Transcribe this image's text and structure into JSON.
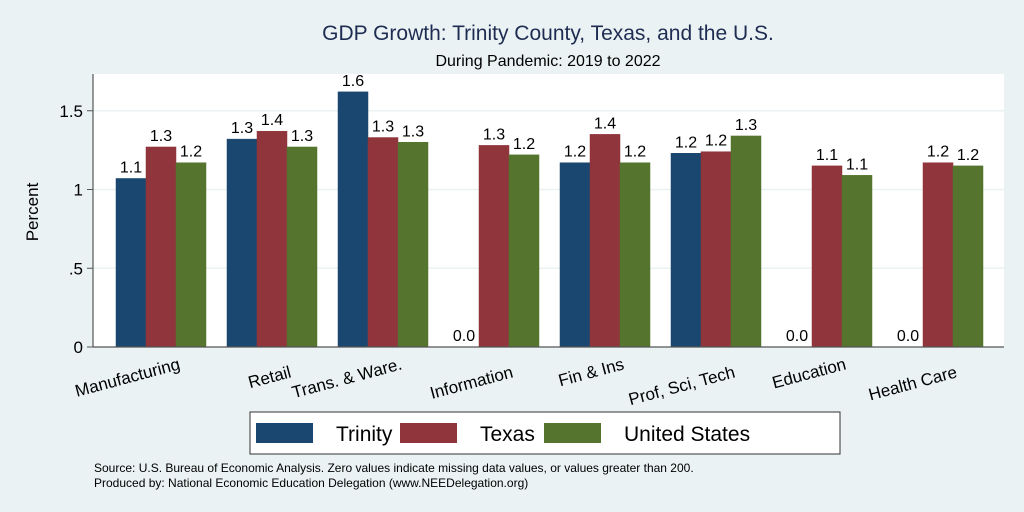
{
  "chart_data": {
    "type": "bar",
    "title": "GDP Growth: Trinity County, Texas, and the U.S.",
    "subtitle": "During Pandemic: 2019 to 2022",
    "xlabel": "",
    "ylabel": "Percent",
    "ylim": [
      0,
      1.75
    ],
    "yticks": [
      0,
      0.5,
      1,
      1.5
    ],
    "ytick_labels": [
      "0",
      ".5",
      "1",
      "1.5"
    ],
    "grid": true,
    "legend_position": "bottom",
    "categories": [
      "Manufacturing",
      "Retail",
      "Trans. & Ware.",
      "Information",
      "Fin & Ins",
      "Prof, Sci, Tech",
      "Education",
      "Health Care"
    ],
    "series": [
      {
        "name": "Trinity",
        "color": "#1a476f",
        "values": [
          1.07,
          1.32,
          1.62,
          0.0,
          1.17,
          1.23,
          0.0,
          0.0
        ],
        "labels": [
          "1.1",
          "1.3",
          "1.6",
          "0.0",
          "1.2",
          "1.2",
          "0.0",
          "0.0"
        ]
      },
      {
        "name": "Texas",
        "color": "#90353b",
        "values": [
          1.27,
          1.37,
          1.33,
          1.28,
          1.35,
          1.24,
          1.15,
          1.17
        ],
        "labels": [
          "1.3",
          "1.4",
          "1.3",
          "1.3",
          "1.4",
          "1.2",
          "1.1",
          "1.2"
        ]
      },
      {
        "name": "United States",
        "color": "#55752f",
        "values": [
          1.17,
          1.27,
          1.3,
          1.22,
          1.17,
          1.34,
          1.09,
          1.15
        ],
        "labels": [
          "1.2",
          "1.3",
          "1.3",
          "1.2",
          "1.2",
          "1.3",
          "1.1",
          "1.2"
        ]
      }
    ]
  },
  "footer": {
    "source": "Source: U.S. Bureau of Economic Analysis. Zero values indicate missing data values, or values greater than 200.",
    "produced": "Produced by: National Economic Education Delegation (www.NEEDelegation.org)"
  }
}
